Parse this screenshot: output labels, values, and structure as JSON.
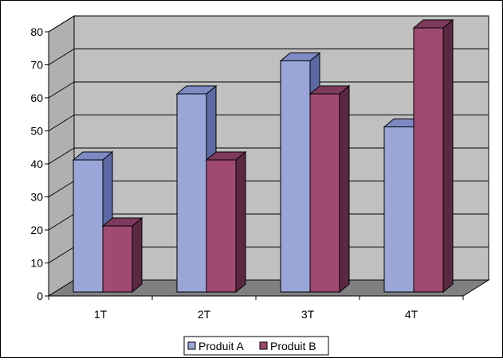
{
  "chart_data": {
    "type": "bar",
    "style": "3d-clustered-column",
    "categories": [
      "1T",
      "2T",
      "3T",
      "4T"
    ],
    "series": [
      {
        "name": "Produit A",
        "values": [
          40,
          60,
          70,
          50
        ],
        "color": "#9aa6d8",
        "side_color": "#5b6aa5",
        "top_color": "#7d8ac4"
      },
      {
        "name": "Produit B",
        "values": [
          20,
          40,
          60,
          80
        ],
        "color": "#a04a72",
        "side_color": "#5a2840",
        "top_color": "#7e3a5c"
      }
    ],
    "y_ticks": [
      "0",
      "10",
      "20",
      "30",
      "40",
      "50",
      "60",
      "70",
      "80"
    ],
    "ylim": [
      0,
      80
    ],
    "grid": true,
    "legend_position": "bottom",
    "colors": {
      "wall": "#c0c0c0",
      "floor": "#808080",
      "background": "#ffffff"
    }
  }
}
